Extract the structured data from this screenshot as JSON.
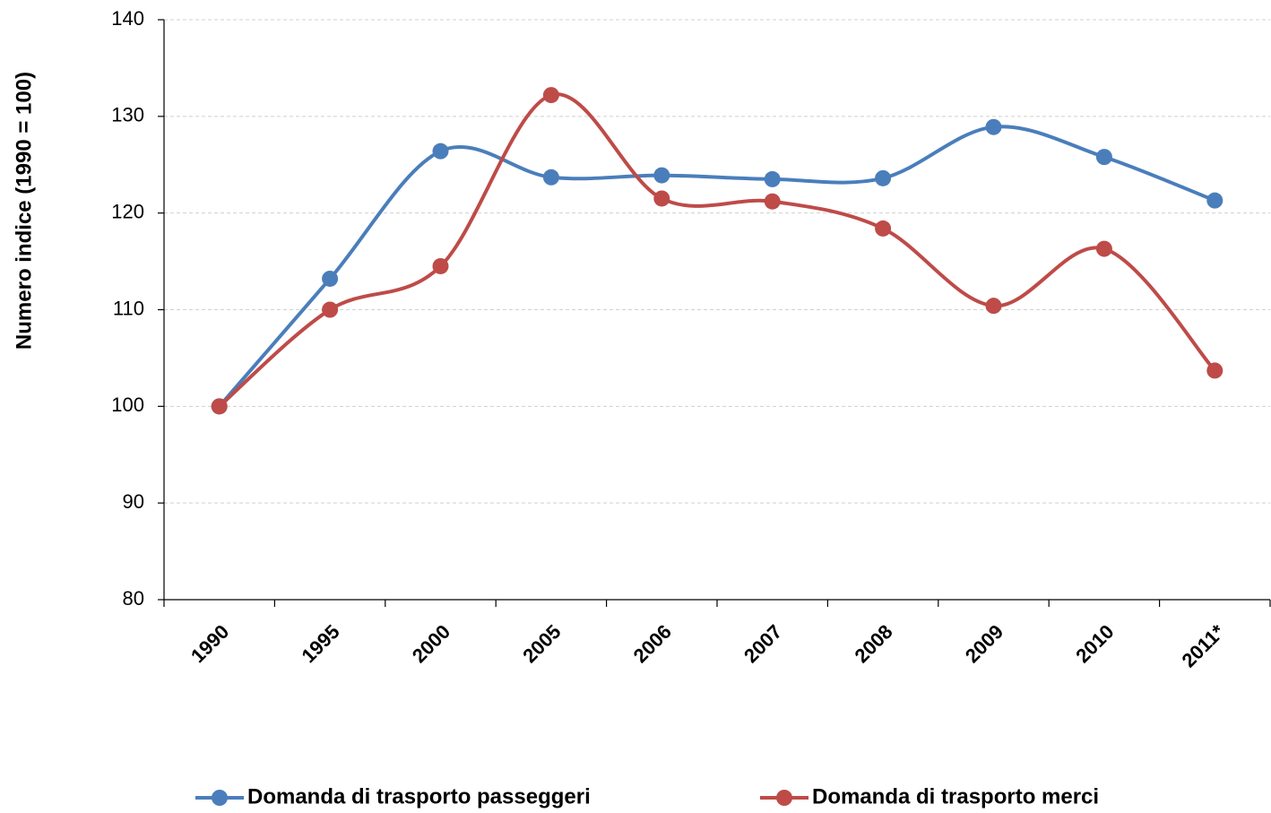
{
  "chart_data": {
    "type": "line",
    "y_label": "Numero indice (1990 = 100)",
    "categories": [
      "1990",
      "1995",
      "2000",
      "2005",
      "2006",
      "2007",
      "2008",
      "2009",
      "2010",
      "2011*"
    ],
    "series": [
      {
        "name": "Domanda di trasporto passeggeri",
        "color": "#4a7ebb",
        "values": [
          100,
          113.2,
          126.4,
          123.7,
          123.9,
          123.5,
          123.6,
          128.9,
          125.8,
          121.3
        ]
      },
      {
        "name": "Domanda di trasporto merci",
        "color": "#be4b48",
        "values": [
          100,
          110,
          114.5,
          132.2,
          121.5,
          121.2,
          118.4,
          110.4,
          116.3,
          103.7
        ]
      }
    ],
    "ylim": [
      80,
      140
    ],
    "yticks": [
      80,
      90,
      100,
      110,
      120,
      130,
      140
    ],
    "grid": true,
    "legend": "bottom"
  }
}
